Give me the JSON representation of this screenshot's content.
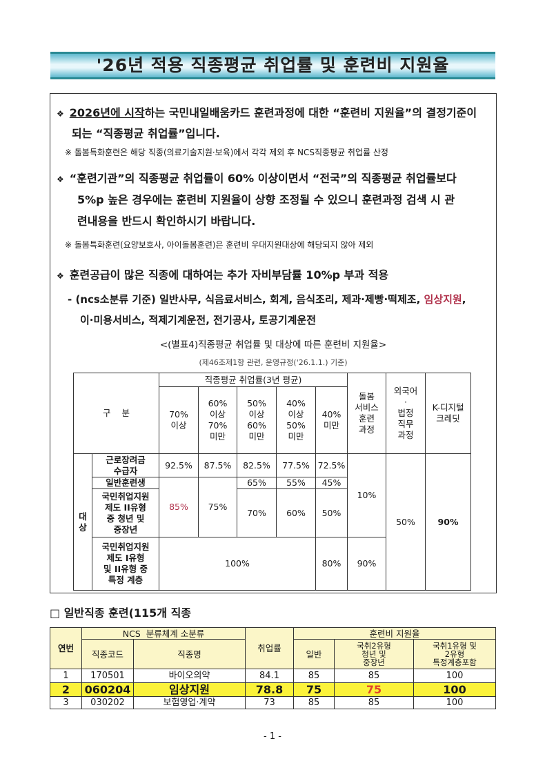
{
  "title": "'26년 적용 직종평균 취업률 및 훈련비 지원율",
  "bullet_symbol": "❖",
  "note_symbol": "※",
  "bullets": [
    {
      "line1_u": "2026년에 시작",
      "line1": "하는 국민내일배움카드 훈련과정에 대한 “훈련비 지원율”의 결정기준이",
      "line2": "되는 “직종평균 취업률”입니다.",
      "note": "※ 돌봄특화훈련은 해당 직종(의료기술지원·보육)에서 각각 제외 후 NCS직종평균 취업률 산정"
    },
    {
      "line1": "“훈련기관”의 직종평균 취업률이 60% 이상이면서 “전국”의 직종평균 취업률보다",
      "line2": "5%p 높은 경우에는 훈련비 지원율이 상향 조정될 수 있으니 훈련과정 검색 시 관",
      "line3": "련내용을 반드시 확인하시기 바랍니다.",
      "note": "※ 돌봄특화훈련(요양보호사, 아이돌봄훈련)은 훈련비 우대지원대상에 해당되지 않아 제외"
    },
    {
      "line1": "훈련공급이 많은 직종에 대하여는 추가 자비부담률 10%p 부과 적용",
      "sub1": "- (ncs소분류 기준) 일반사무, 식음료서비스, 회계, 음식조리, 제과·제빵·떡제조, ",
      "sub1_red": "임상지원",
      "sub1_end": ",",
      "sub2": "이·미용서비스, 적제기계운전, 전기공사, 토공기계운전"
    }
  ],
  "table1": {
    "caption": "<(별표4)직종평균 취업률 및 대상에 따른 훈련비 지원율>",
    "subcaption": "(제46조제1항 관련, 운영규정('26.1.1.) 기준)",
    "h_gubun": "구    분",
    "h_rate": "직종평균 취업률(3년 평균)",
    "h_cols": [
      "70%\n이상",
      "60%\n이상\n70%\n미만",
      "50%\n이상\n60%\n미만",
      "40%\n이상\n50%\n미만",
      "40%\n미만"
    ],
    "h_care": "돌봄\n서비스\n훈련\n과정",
    "h_lang": "외국어\n·\n법정\n직무\n과정",
    "h_kdigital": "K-디지털\n크레딧",
    "target_label": "대\n상",
    "rows": {
      "r1_label": "근로장려금\n수급자",
      "r1": [
        "92.5%",
        "87.5%",
        "82.5%",
        "77.5%",
        "72.5%"
      ],
      "r2_label": "일반훈련생",
      "r2": [
        "65%",
        "55%",
        "45%"
      ],
      "r3_label": "국민취업지원\n제도 II유형\n중 청년 및\n중장년",
      "r3": [
        "70%",
        "60%",
        "50%"
      ],
      "r23_70": "85%",
      "r23_60": "75%",
      "care_123": "10%",
      "lang": "50%",
      "kdigital": "90%",
      "r4_label": "국민취업지원\n제도 I유형\n및 II유형 중\n특정 계층",
      "r4_100": "100%",
      "r4_40": "80%",
      "r4_care": "90%"
    }
  },
  "section2": {
    "title": "□ 일반직종 훈련(115개 직종",
    "headers": {
      "no": "연번",
      "ncs": "NCS  분류체계 소분류",
      "code": "직종코드",
      "name": "직종명",
      "emp": "취업률",
      "support": "훈련비 지원율",
      "general": "일반",
      "t2": "국취2유형\n청년 및\n중장년",
      "t1": "국취1유형 및\n2유형\n특정계층포함"
    },
    "rows": [
      {
        "no": "1",
        "code": "170501",
        "name": "바이오의약",
        "emp": "84.1",
        "general": "85",
        "t2": "85",
        "t1": "100"
      },
      {
        "no": "2",
        "code": "060204",
        "name": "임상지원",
        "emp": "78.8",
        "general": "75",
        "t2": "75",
        "t1": "100"
      },
      {
        "no": "3",
        "code": "030202",
        "name": "보험영업·계약",
        "emp": "73",
        "general": "85",
        "t2": "85",
        "t1": "100"
      }
    ],
    "highlight_color": "#fbf23a"
  },
  "page_number": "- 1 -"
}
